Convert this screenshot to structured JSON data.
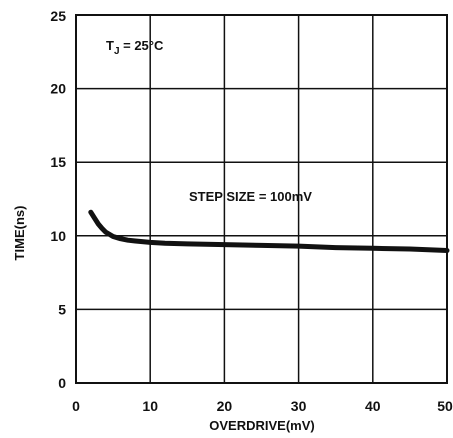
{
  "chart_data": {
    "type": "line",
    "xlabel": "OVERDRIVE(mV)",
    "ylabel": "TIME(ns)",
    "xlim": [
      0,
      50
    ],
    "ylim": [
      0,
      25
    ],
    "xticks": [
      0,
      10,
      20,
      30,
      40,
      50
    ],
    "yticks": [
      0,
      5,
      10,
      15,
      20,
      25
    ],
    "grid": true,
    "annotations": {
      "tj_main": "T",
      "tj_sub": "J",
      "tj_rest": " = 25°C",
      "step": "STEP SIZE = 100mV"
    },
    "series": [
      {
        "x": [
          2,
          2.5,
          3,
          3.5,
          4,
          5,
          6,
          7,
          8,
          10,
          12,
          15,
          20,
          25,
          30,
          35,
          40,
          45,
          50
        ],
        "y": [
          11.6,
          11.2,
          10.8,
          10.5,
          10.25,
          9.95,
          9.8,
          9.7,
          9.65,
          9.55,
          9.5,
          9.45,
          9.4,
          9.35,
          9.3,
          9.2,
          9.15,
          9.1,
          9.0
        ]
      }
    ]
  }
}
